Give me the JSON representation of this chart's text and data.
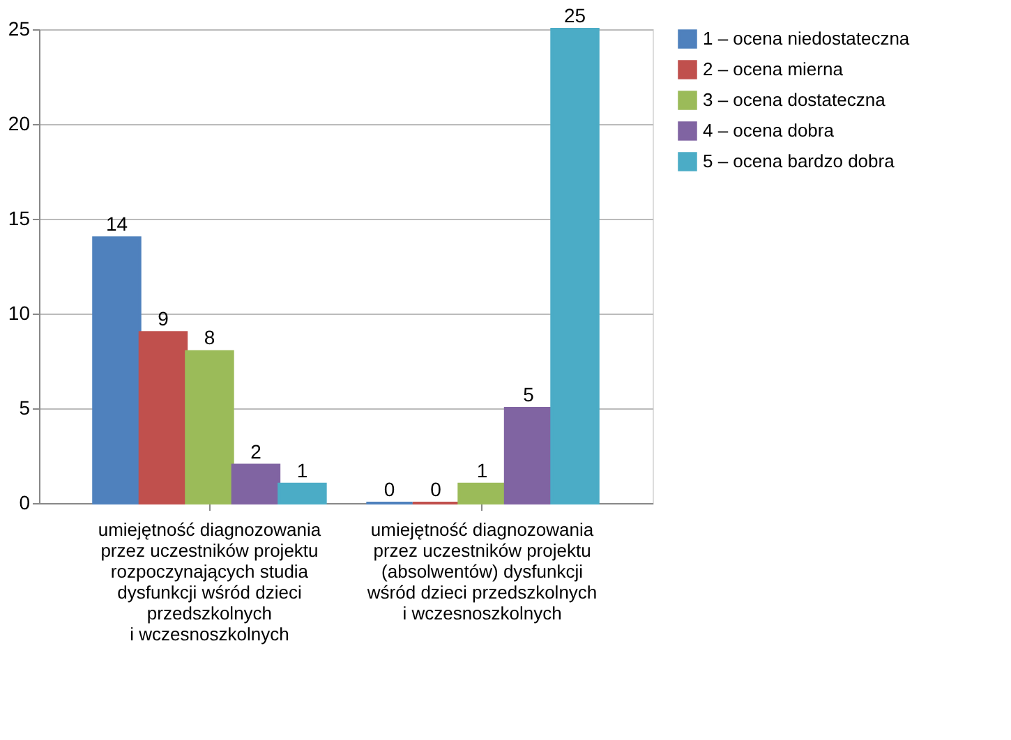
{
  "chart_data": {
    "type": "bar",
    "categories": [
      "umiejętność diagnozowania\nprzez uczestników projektu\nrozpoczynających studia\ndysfunkcji wśród dzieci\nprzedszkolnych\ni wczesnoszkolnych",
      "umiejętność diagnozowania\nprzez uczestników projektu\n(absolwentów) dysfunkcji\nwśród dzieci przedszkolnych\ni wczesnoszkolnych"
    ],
    "series": [
      {
        "name": "1 – ocena niedostateczna",
        "color": "#4f81bd",
        "values": [
          14,
          0
        ]
      },
      {
        "name": "2 – ocena mierna",
        "color": "#c0504d",
        "values": [
          9,
          0
        ]
      },
      {
        "name": "3 – ocena dostateczna",
        "color": "#9bbb59",
        "values": [
          8,
          1
        ]
      },
      {
        "name": "4 – ocena dobra",
        "color": "#8064a2",
        "values": [
          2,
          5
        ]
      },
      {
        "name": "5 – ocena bardzo dobra",
        "color": "#4bacc6",
        "values": [
          1,
          25
        ]
      }
    ],
    "ylim": [
      0,
      25
    ],
    "yticks": [
      0,
      5,
      10,
      15,
      20,
      25
    ],
    "grid": "y",
    "legend": "right",
    "data_labels": true
  }
}
